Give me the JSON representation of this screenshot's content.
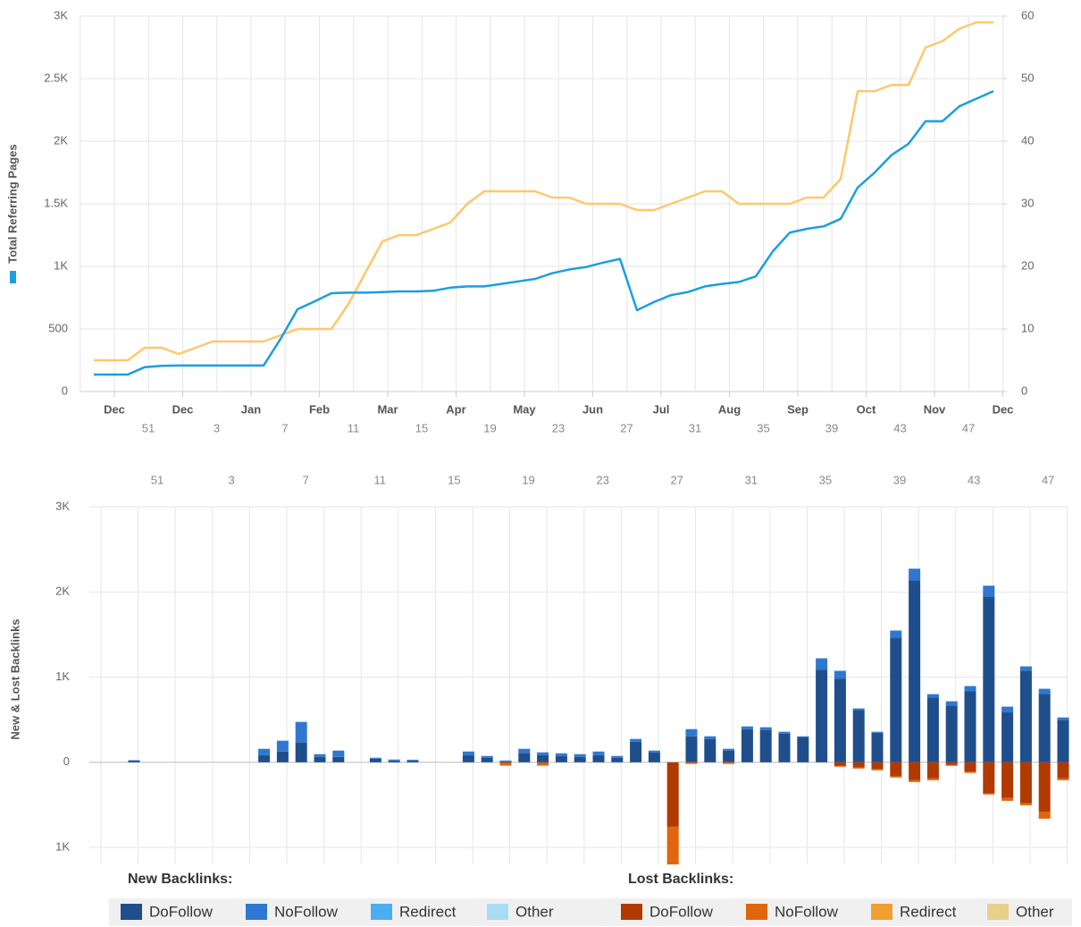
{
  "chart_data": [
    {
      "type": "line",
      "ylabel": "Total Referring Pages",
      "x_month_labels": [
        "Dec",
        "Dec",
        "Jan",
        "Feb",
        "Mar",
        "Apr",
        "May",
        "Jun",
        "Jul",
        "Aug",
        "Sep",
        "Oct",
        "Nov",
        "Dec"
      ],
      "x_week_labels": [
        "51",
        "3",
        "7",
        "11",
        "15",
        "19",
        "23",
        "27",
        "31",
        "35",
        "39",
        "43",
        "47"
      ],
      "ylim": [
        0,
        3000
      ],
      "yticks": [
        0,
        500,
        {
          "value": 1000,
          "label": "1K"
        },
        {
          "value": 1500,
          "label": "1.5K"
        },
        {
          "value": 2000,
          "label": "2K"
        },
        {
          "value": 2500,
          "label": "2.5K"
        },
        {
          "value": 3000,
          "label": "3K"
        }
      ],
      "y2lim": [
        0,
        60
      ],
      "y2ticks": [
        0,
        10,
        20,
        30,
        40,
        50,
        60
      ],
      "grid": true,
      "series": [
        {
          "color": "#1a9fdf",
          "values": [
            136,
            136,
            136,
            195,
            205,
            208,
            208,
            208,
            208,
            208,
            208,
            420,
            657,
            720,
            786,
            790,
            790,
            795,
            800,
            800,
            805,
            830,
            840,
            840,
            860,
            880,
            900,
            945,
            975,
            995,
            1030,
            1060,
            650,
            715,
            770,
            795,
            840,
            860,
            875,
            920,
            1120,
            1270,
            1300,
            1320,
            1380,
            1630,
            1750,
            1890,
            1980,
            2160,
            2160,
            2280,
            2340,
            2400
          ]
        },
        {
          "color": "#ffc76b",
          "axis": "y2",
          "values": [
            5,
            5,
            5,
            7,
            7,
            6,
            7,
            8,
            8,
            8,
            8,
            9,
            10,
            10,
            10,
            14,
            19,
            24,
            25,
            25,
            26,
            27,
            30,
            32,
            32,
            32,
            32,
            31,
            31,
            30,
            30,
            30,
            29,
            29,
            30,
            31,
            32,
            32,
            30,
            30,
            30,
            30,
            31,
            31,
            34,
            48,
            48,
            49,
            49,
            55,
            56,
            58,
            59,
            59
          ]
        }
      ]
    },
    {
      "type": "stacked_bar",
      "ylabel": "New & Lost Backlinks",
      "x_week_labels": [
        "51",
        "3",
        "7",
        "11",
        "15",
        "19",
        "23",
        "27",
        "31",
        "35",
        "39",
        "43",
        "47"
      ],
      "ylim": [
        -1200,
        3000
      ],
      "yticks": [
        {
          "value": -1000,
          "label": "1K"
        },
        0,
        {
          "value": 1000,
          "label": "1K"
        },
        {
          "value": 2000,
          "label": "2K"
        },
        {
          "value": 3000,
          "label": "3K"
        }
      ],
      "grid": true,
      "series_groups": [
        {
          "name": "New Backlinks:",
          "series": [
            {
              "name": "DoFollow",
              "color": "#1f4e8c",
              "values": [
                20,
                0,
                0,
                0,
                0,
                0,
                0,
                84,
                126,
                232,
                63,
                63,
                0,
                40,
                20,
                20,
                0,
                0,
                84,
                50,
                10,
                110,
                84,
                74,
                63,
                84,
                50,
                242,
                116,
                0,
                305,
                274,
                137,
                389,
                379,
                337,
                295,
                1084,
                979,
                611,
                347,
                1463,
                2137,
                758,
                663,
                832,
                1947,
                589,
                1074,
                800,
                495
              ]
            },
            {
              "name": "NoFollow",
              "color": "#2f77d0",
              "values": [
                5,
                0,
                0,
                0,
                0,
                0,
                0,
                74,
                127,
                242,
                32,
                74,
                0,
                13,
                12,
                10,
                0,
                0,
                42,
                24,
                11,
                48,
                32,
                31,
                32,
                42,
                24,
                32,
                21,
                0,
                84,
                31,
                21,
                32,
                32,
                21,
                10,
                137,
                95,
                21,
                11,
                84,
                137,
                42,
                53,
                63,
                127,
                64,
                52,
                63,
                31
              ]
            },
            {
              "name": "Redirect",
              "color": "#4aaef0",
              "values": [
                0,
                0,
                0,
                0,
                0,
                0,
                0,
                0,
                0,
                0,
                0,
                0,
                0,
                0,
                0,
                0,
                0,
                0,
                0,
                0,
                0,
                0,
                0,
                0,
                0,
                0,
                0,
                0,
                0,
                0,
                0,
                0,
                0,
                0,
                0,
                0,
                0,
                0,
                0,
                0,
                0,
                0,
                0,
                0,
                0,
                0,
                0,
                0,
                0,
                0,
                0
              ]
            },
            {
              "name": "Other",
              "color": "#a8dcf5",
              "values": [
                0,
                0,
                0,
                0,
                0,
                0,
                0,
                0,
                0,
                0,
                0,
                0,
                0,
                0,
                0,
                0,
                0,
                0,
                0,
                0,
                0,
                0,
                0,
                0,
                0,
                0,
                0,
                0,
                0,
                0,
                0,
                0,
                0,
                0,
                0,
                0,
                0,
                0,
                0,
                0,
                0,
                0,
                0,
                0,
                0,
                0,
                0,
                0,
                0,
                0,
                0
              ]
            }
          ]
        },
        {
          "name": "Lost Backlinks:",
          "series": [
            {
              "name": "DoFollow",
              "color": "#b03a00",
              "values": [
                0,
                0,
                0,
                0,
                0,
                0,
                0,
                0,
                0,
                0,
                0,
                0,
                0,
                0,
                0,
                0,
                0,
                0,
                0,
                0,
                -10,
                0,
                -10,
                0,
                0,
                0,
                0,
                0,
                0,
                -758,
                0,
                0,
                0,
                0,
                0,
                0,
                0,
                0,
                -40,
                -60,
                -80,
                -160,
                -210,
                -190,
                -30,
                -110,
                -360,
                -420,
                -480,
                -580,
                -190
              ]
            },
            {
              "name": "NoFollow",
              "color": "#e0650c",
              "values": [
                0,
                0,
                0,
                0,
                0,
                0,
                0,
                0,
                0,
                0,
                0,
                0,
                0,
                0,
                0,
                0,
                0,
                0,
                0,
                0,
                -30,
                0,
                -30,
                0,
                0,
                0,
                0,
                0,
                0,
                -442,
                -20,
                0,
                -20,
                0,
                0,
                0,
                0,
                0,
                -13,
                -14,
                -15,
                -19,
                -22,
                -21,
                -12,
                -16,
                -19,
                -33,
                -25,
                -83,
                -21
              ]
            },
            {
              "name": "Redirect",
              "color": "#f0a030",
              "values": [
                0,
                0,
                0,
                0,
                0,
                0,
                0,
                0,
                0,
                0,
                0,
                0,
                0,
                0,
                0,
                0,
                0,
                0,
                0,
                0,
                0,
                0,
                0,
                0,
                0,
                0,
                0,
                0,
                0,
                0,
                0,
                0,
                0,
                0,
                0,
                0,
                0,
                0,
                0,
                0,
                0,
                0,
                0,
                0,
                0,
                0,
                0,
                0,
                0,
                0,
                0
              ]
            },
            {
              "name": "Other",
              "color": "#e8cf8a",
              "values": [
                0,
                0,
                0,
                0,
                0,
                0,
                0,
                0,
                0,
                0,
                0,
                0,
                0,
                0,
                0,
                0,
                0,
                0,
                0,
                0,
                0,
                0,
                0,
                0,
                0,
                0,
                0,
                0,
                0,
                0,
                0,
                0,
                0,
                0,
                0,
                0,
                0,
                0,
                0,
                0,
                0,
                0,
                0,
                0,
                0,
                0,
                0,
                0,
                0,
                0,
                0
              ]
            }
          ]
        }
      ]
    }
  ]
}
